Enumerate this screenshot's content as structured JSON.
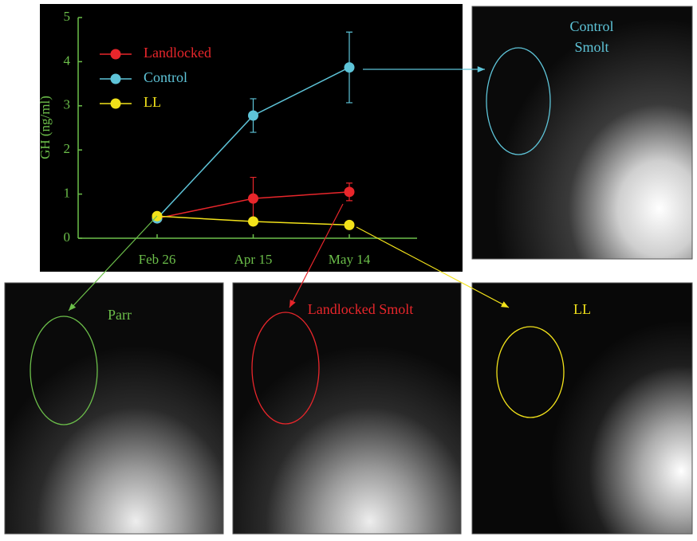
{
  "chart_data": {
    "type": "line",
    "ylabel": "GH (ng/ml)",
    "categories": [
      "Feb 26",
      "Apr 15",
      "May 14"
    ],
    "series": [
      {
        "name": "Landlocked",
        "color": "#e8262b",
        "values": [
          0.45,
          0.9,
          1.05
        ],
        "errors": [
          0.05,
          0.48,
          0.2
        ]
      },
      {
        "name": "Control",
        "color": "#5ec4d8",
        "values": [
          0.45,
          2.78,
          3.87
        ],
        "errors": [
          0.05,
          0.38,
          0.8
        ]
      },
      {
        "name": "LL",
        "color": "#f2e21a",
        "values": [
          0.5,
          0.38,
          0.3
        ],
        "errors": [
          0.05,
          0.05,
          0.05
        ]
      }
    ],
    "ylim": [
      0,
      5
    ],
    "yticks": [
      0,
      1,
      2,
      3,
      4,
      5
    ],
    "axis_color": "#6cbf4a",
    "panels": [
      {
        "label": "Control Smolt",
        "color": "#5ec4d8"
      },
      {
        "label": "Parr",
        "color": "#6cbf4a"
      },
      {
        "label": "Landlocked Smolt",
        "color": "#e8262b"
      },
      {
        "label": "LL",
        "color": "#f2e21a"
      }
    ]
  }
}
